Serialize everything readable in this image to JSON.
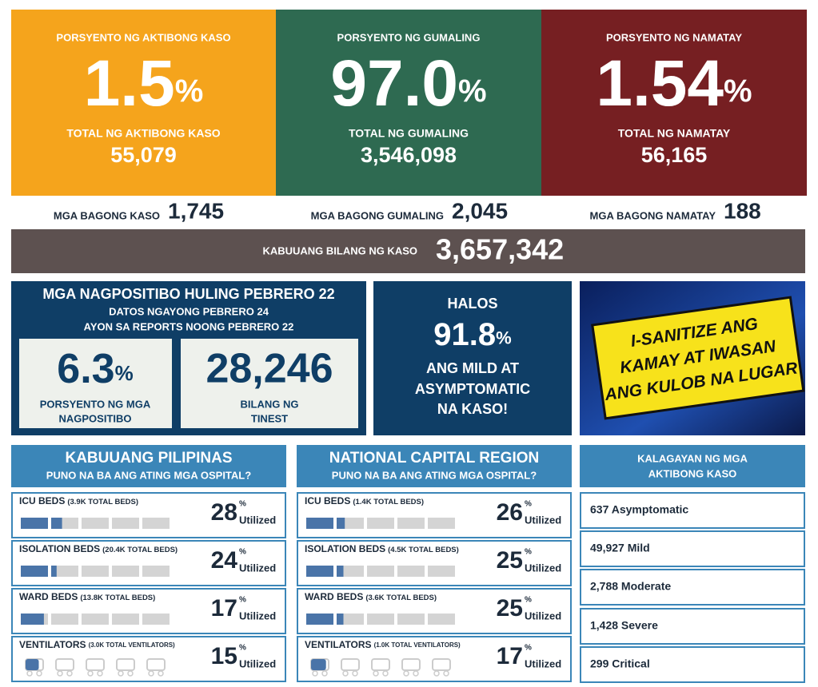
{
  "top_cards": [
    {
      "label": "PORSYENTO NG AKTIBONG KASO",
      "percent": "1.5",
      "total_label": "TOTAL NG AKTIBONG KASO",
      "total": "55,079",
      "color": "#f5a41c"
    },
    {
      "label": "PORSYENTO NG GUMALING",
      "percent": "97.0",
      "total_label": "TOTAL NG GUMALING",
      "total": "3,546,098",
      "color": "#2e6a51"
    },
    {
      "label": "PORSYENTO NG NAMATAY",
      "percent": "1.54",
      "total_label": "TOTAL NG NAMATAY",
      "total": "56,165",
      "color": "#761f22"
    }
  ],
  "percent_sign": "%",
  "new_counts": [
    {
      "label": "MGA BAGONG KASO",
      "value": "1,745"
    },
    {
      "label": "MGA BAGONG GUMALING",
      "value": "2,045"
    },
    {
      "label": "MGA BAGONG NAMATAY",
      "value": "188"
    }
  ],
  "total_cases": {
    "label": "KABUUANG BILANG NG KASO",
    "value": "3,657,342"
  },
  "positivity": {
    "title": "MGA NAGPOSITIBO HULING PEBRERO 22",
    "subtitle_1": "DATOS NGAYONG PEBRERO 24",
    "subtitle_2": "AYON SA REPORTS NOONG PEBRERO 22",
    "rate": "6.3",
    "rate_label_1": "PORSYENTO NG MGA",
    "rate_label_2": "NAGPOSITIBO",
    "tested": "28,246",
    "tested_label_1": "BILANG NG",
    "tested_label_2": "TINEST"
  },
  "mild": {
    "line_1": "HALOS",
    "percent": "91.8",
    "line_2": "ANG MILD AT",
    "line_3": "ASYMPTOMATIC",
    "line_4": "NA KASO!"
  },
  "banner": {
    "line_1": "I-SANITIZE ANG",
    "line_2": "KAMAY AT IWASAN",
    "line_3": "ANG KULOB NA LUGAR"
  },
  "utilized_label": "Utilized",
  "hospitals": [
    {
      "title": "KABUUANG PILIPINAS",
      "subtitle": "PUNO NA BA ANG ATING MGA OSPITAL?",
      "rows": [
        {
          "name": "ICU BEDS",
          "capacity": "(3.9K TOTAL BEDS)",
          "percent": 28,
          "icons": false
        },
        {
          "name": "ISOLATION BEDS",
          "capacity": "(20.4K TOTAL BEDS)",
          "percent": 24,
          "icons": false
        },
        {
          "name": "WARD BEDS",
          "capacity": "(13.8K TOTAL BEDS)",
          "percent": 17,
          "icons": false
        },
        {
          "name": "VENTILATORS",
          "capacity": "(3.0K TOTAL VENTILATORS)",
          "percent": 15,
          "icons": true
        }
      ]
    },
    {
      "title": "NATIONAL CAPITAL REGION",
      "subtitle": "PUNO NA BA ANG ATING MGA OSPITAL?",
      "rows": [
        {
          "name": "ICU BEDS",
          "capacity": "(1.4K TOTAL BEDS)",
          "percent": 26,
          "icons": false
        },
        {
          "name": "ISOLATION BEDS",
          "capacity": "(4.5K TOTAL BEDS)",
          "percent": 25,
          "icons": false
        },
        {
          "name": "WARD BEDS",
          "capacity": "(3.6K TOTAL BEDS)",
          "percent": 25,
          "icons": false
        },
        {
          "name": "VENTILATORS",
          "capacity": "(1.0K TOTAL VENTILATORS)",
          "percent": 17,
          "icons": true
        }
      ]
    }
  ],
  "status": {
    "title_1": "KALAGAYAN NG MGA",
    "title_2": "AKTIBONG KASO",
    "rows": [
      "637 Asymptomatic",
      "49,927 Mild",
      "2,788 Moderate",
      "1,428 Severe",
      "299 Critical"
    ]
  }
}
